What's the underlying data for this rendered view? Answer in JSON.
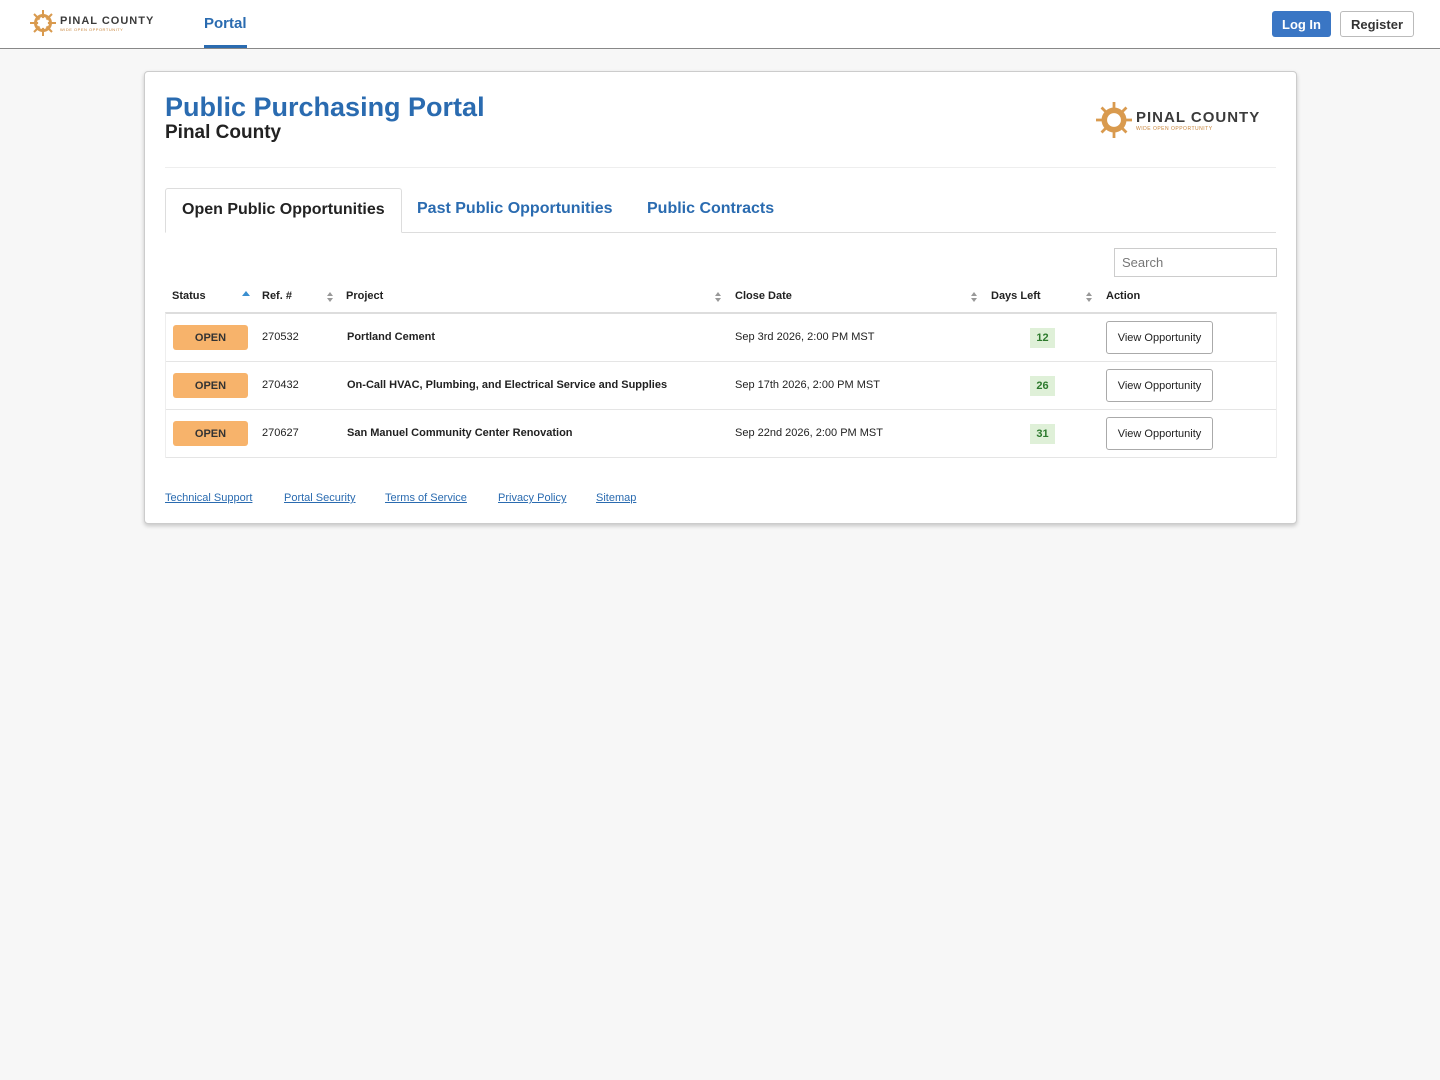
{
  "header": {
    "logo": {
      "name": "PINAL COUNTY",
      "tagline": "WIDE OPEN OPPORTUNITY"
    },
    "nav": [
      "Portal"
    ],
    "login": "Log In",
    "register": "Register"
  },
  "card": {
    "title": "Public Purchasing Portal",
    "subtitle": "Pinal County",
    "logo": {
      "name": "PINAL COUNTY",
      "tagline": "WIDE OPEN OPPORTUNITY"
    },
    "tabs": [
      "Open Public Opportunities",
      "Past Public Opportunities",
      "Public Contracts"
    ],
    "search": "Search",
    "table": {
      "columns": [
        "Status",
        "Ref. #",
        "Project",
        "Close Date",
        "Days Left",
        "Action"
      ],
      "rows": [
        [
          "OPEN",
          "270532",
          "Portland Cement",
          "Sep 3rd 2026, 2:00 PM MST",
          12,
          "View Opportunity"
        ],
        [
          "OPEN",
          "270432",
          "On-Call HVAC, Plumbing, and Electrical Service and Supplies",
          "Sep 17th 2026, 2:00 PM MST",
          26,
          "View Opportunity"
        ],
        [
          "OPEN",
          "270627",
          "San Manuel Community Center Renovation",
          "Sep 22nd 2026, 2:00 PM MST",
          31,
          "View Opportunity"
        ]
      ]
    },
    "footer": [
      "Technical Support",
      "Portal Security",
      "Terms of Service",
      "Privacy Policy",
      "Sitemap"
    ]
  }
}
